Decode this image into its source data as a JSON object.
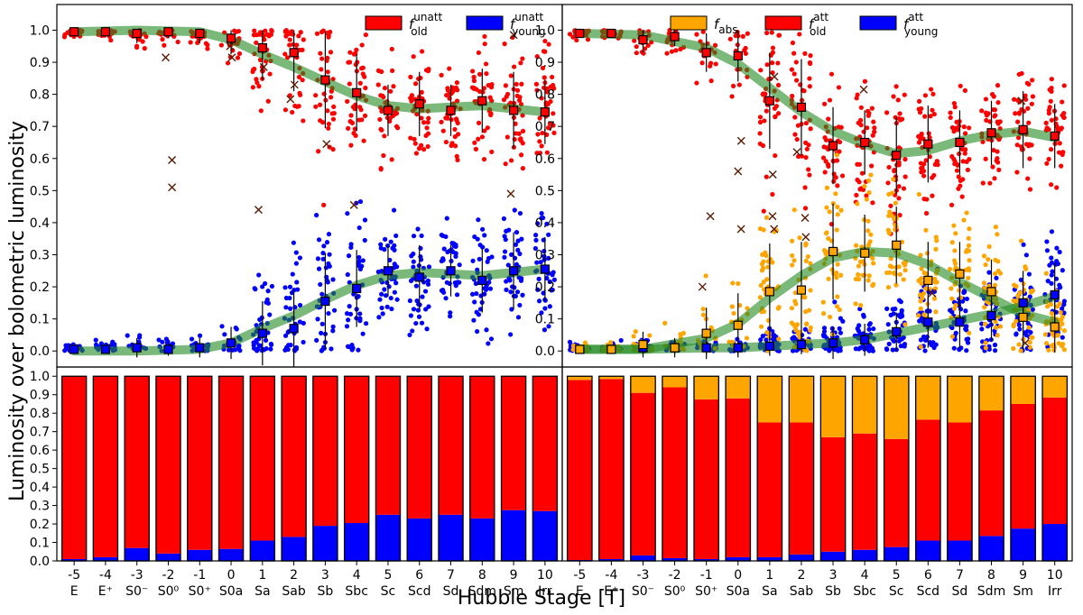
{
  "figure": {
    "ylabel": "Luminosity over bolometric luminosity",
    "xlabel": "Hubble Stage [T]"
  },
  "colors": {
    "old": "#ff0000",
    "young": "#0000ff",
    "abs": "#ffa500",
    "trend": "#228b22",
    "axes": "#000000"
  },
  "chart_data": [
    {
      "id": "top-left",
      "type": "scatter",
      "title": "",
      "ylim": [
        -0.05,
        1.08
      ],
      "yticks": [
        "0.0",
        "0.1",
        "0.2",
        "0.3",
        "0.4",
        "0.5",
        "0.6",
        "0.7",
        "0.8",
        "0.9",
        "1.0"
      ],
      "legend": [
        {
          "sym": "f",
          "sup": "unatt",
          "sub": "old",
          "color": "#ff0000"
        },
        {
          "sym": "f",
          "sup": "unatt",
          "sub": "young",
          "color": "#0000ff"
        }
      ],
      "x": [
        -5,
        -4,
        -3,
        -2,
        -1,
        0,
        1,
        2,
        3,
        4,
        5,
        6,
        7,
        8,
        9,
        10
      ],
      "series": [
        {
          "name": "f_old_unatt",
          "color": "#ff0000",
          "mean": [
            0.995,
            0.995,
            0.99,
            0.995,
            0.99,
            0.975,
            0.945,
            0.93,
            0.845,
            0.805,
            0.75,
            0.77,
            0.75,
            0.78,
            0.75,
            0.745
          ],
          "err": [
            0.005,
            0.01,
            0.03,
            0.02,
            0.03,
            0.05,
            0.1,
            0.12,
            0.15,
            0.12,
            0.08,
            0.1,
            0.08,
            0.1,
            0.12,
            0.1
          ]
        },
        {
          "name": "f_young_unatt",
          "color": "#0000ff",
          "mean": [
            0.005,
            0.005,
            0.01,
            0.005,
            0.01,
            0.025,
            0.055,
            0.07,
            0.155,
            0.195,
            0.25,
            0.23,
            0.25,
            0.22,
            0.25,
            0.255
          ],
          "err": [
            0.005,
            0.01,
            0.03,
            0.02,
            0.03,
            0.05,
            0.1,
            0.12,
            0.15,
            0.12,
            0.08,
            0.1,
            0.08,
            0.1,
            0.12,
            0.1
          ]
        }
      ],
      "trend": [
        [
          [
            -5,
            0.995
          ],
          [
            -3,
            1.0
          ],
          [
            -1,
            0.995
          ],
          [
            0,
            0.97
          ],
          [
            1,
            0.925
          ],
          [
            2,
            0.885
          ],
          [
            3,
            0.84
          ],
          [
            4,
            0.795
          ],
          [
            5,
            0.765
          ],
          [
            6,
            0.755
          ],
          [
            7,
            0.76
          ],
          [
            8,
            0.765
          ],
          [
            9,
            0.755
          ],
          [
            10,
            0.745
          ]
        ],
        [
          [
            -5,
            0.0
          ],
          [
            -3,
            0.0
          ],
          [
            -1,
            0.005
          ],
          [
            0,
            0.025
          ],
          [
            1,
            0.07
          ],
          [
            2,
            0.11
          ],
          [
            3,
            0.16
          ],
          [
            4,
            0.205
          ],
          [
            5,
            0.235
          ],
          [
            6,
            0.245
          ],
          [
            7,
            0.24
          ],
          [
            8,
            0.235
          ],
          [
            9,
            0.245
          ],
          [
            10,
            0.255
          ]
        ]
      ],
      "crosses": [
        [
          -2,
          0.915
        ],
        [
          -2,
          0.595
        ],
        [
          -2,
          0.51
        ],
        [
          0,
          0.915
        ],
        [
          0,
          0.95
        ],
        [
          1,
          0.885
        ],
        [
          1,
          0.44
        ],
        [
          2,
          0.83
        ],
        [
          2,
          0.785
        ],
        [
          3,
          0.645
        ],
        [
          4,
          0.455
        ],
        [
          9,
          0.985
        ],
        [
          9,
          0.49
        ]
      ]
    },
    {
      "id": "top-right",
      "type": "scatter",
      "title": "",
      "ylim": [
        -0.05,
        1.08
      ],
      "yticks": [
        "0.0",
        "0.1",
        "0.2",
        "0.3",
        "0.4",
        "0.5",
        "0.6",
        "0.7",
        "0.8",
        "0.9",
        "1.0"
      ],
      "legend": [
        {
          "sym": "f",
          "sup": "",
          "sub": "abs",
          "color": "#ffa500"
        },
        {
          "sym": "f",
          "sup": "att",
          "sub": "old",
          "color": "#ff0000"
        },
        {
          "sym": "f",
          "sup": "att",
          "sub": "young",
          "color": "#0000ff"
        }
      ],
      "x": [
        -5,
        -4,
        -3,
        -2,
        -1,
        0,
        1,
        2,
        3,
        4,
        5,
        6,
        7,
        8,
        9,
        10
      ],
      "series": [
        {
          "name": "f_old_att",
          "color": "#ff0000",
          "mean": [
            0.99,
            0.99,
            0.97,
            0.98,
            0.93,
            0.92,
            0.78,
            0.76,
            0.64,
            0.65,
            0.61,
            0.645,
            0.65,
            0.68,
            0.69,
            0.67
          ],
          "err": [
            0.01,
            0.01,
            0.04,
            0.03,
            0.06,
            0.08,
            0.15,
            0.15,
            0.12,
            0.1,
            0.12,
            0.12,
            0.1,
            0.1,
            0.12,
            0.1
          ]
        },
        {
          "name": "f_young_att",
          "color": "#0000ff",
          "mean": [
            0.005,
            0.005,
            0.01,
            0.01,
            0.01,
            0.01,
            0.015,
            0.02,
            0.025,
            0.035,
            0.06,
            0.09,
            0.09,
            0.11,
            0.15,
            0.175
          ],
          "err": [
            0.005,
            0.005,
            0.02,
            0.02,
            0.02,
            0.02,
            0.03,
            0.03,
            0.05,
            0.05,
            0.06,
            0.08,
            0.08,
            0.08,
            0.1,
            0.1
          ]
        },
        {
          "name": "f_abs",
          "color": "#ffa500",
          "mean": [
            0.005,
            0.005,
            0.02,
            0.01,
            0.055,
            0.08,
            0.185,
            0.19,
            0.31,
            0.305,
            0.33,
            0.22,
            0.24,
            0.185,
            0.105,
            0.075
          ],
          "err": [
            0.005,
            0.005,
            0.04,
            0.03,
            0.08,
            0.1,
            0.15,
            0.15,
            0.15,
            0.12,
            0.12,
            0.12,
            0.1,
            0.1,
            0.1,
            0.08
          ]
        }
      ],
      "trend": [
        [
          [
            -5,
            0.99
          ],
          [
            -3,
            0.985
          ],
          [
            -1,
            0.945
          ],
          [
            0,
            0.895
          ],
          [
            1,
            0.82
          ],
          [
            2,
            0.745
          ],
          [
            3,
            0.685
          ],
          [
            4,
            0.645
          ],
          [
            5,
            0.615
          ],
          [
            6,
            0.625
          ],
          [
            7,
            0.655
          ],
          [
            8,
            0.675
          ],
          [
            9,
            0.685
          ],
          [
            10,
            0.665
          ]
        ],
        [
          [
            -5,
            0.005
          ],
          [
            -3,
            0.005
          ],
          [
            -1,
            0.01
          ],
          [
            0,
            0.01
          ],
          [
            1,
            0.015
          ],
          [
            2,
            0.02
          ],
          [
            3,
            0.025
          ],
          [
            4,
            0.035
          ],
          [
            5,
            0.055
          ],
          [
            6,
            0.075
          ],
          [
            7,
            0.095
          ],
          [
            8,
            0.115
          ],
          [
            9,
            0.14
          ],
          [
            10,
            0.17
          ]
        ],
        [
          [
            -5,
            0.005
          ],
          [
            -3,
            0.005
          ],
          [
            -1,
            0.04
          ],
          [
            0,
            0.085
          ],
          [
            1,
            0.165
          ],
          [
            2,
            0.235
          ],
          [
            3,
            0.29
          ],
          [
            4,
            0.31
          ],
          [
            5,
            0.305
          ],
          [
            6,
            0.27
          ],
          [
            7,
            0.215
          ],
          [
            8,
            0.165
          ],
          [
            9,
            0.115
          ],
          [
            10,
            0.09
          ]
        ]
      ],
      "crosses": [
        [
          -1,
          0.42
        ],
        [
          -1,
          0.2
        ],
        [
          0,
          0.655
        ],
        [
          0,
          0.56
        ],
        [
          0,
          0.38
        ],
        [
          1,
          0.42
        ],
        [
          1,
          0.38
        ],
        [
          1,
          0.855
        ],
        [
          1,
          0.55
        ],
        [
          2,
          0.415
        ],
        [
          2,
          0.355
        ],
        [
          2,
          0.62
        ],
        [
          4,
          0.815
        ],
        [
          6,
          0.18
        ],
        [
          9,
          0.78
        ],
        [
          9,
          0.025
        ]
      ]
    },
    {
      "id": "bottom-left",
      "type": "bar",
      "stacked": true,
      "ylim": [
        0,
        1.05
      ],
      "yticks": [
        "0.0",
        "0.1",
        "0.2",
        "0.3",
        "0.4",
        "0.5",
        "0.6",
        "0.7",
        "0.8",
        "0.9",
        "1.0"
      ],
      "categories": [
        "-5",
        "-4",
        "-3",
        "-2",
        "-1",
        "0",
        "1",
        "2",
        "3",
        "4",
        "5",
        "6",
        "7",
        "8",
        "9",
        "10"
      ],
      "category_names": [
        "E",
        "E⁺",
        "S0⁻",
        "S0⁰",
        "S0⁺",
        "S0a",
        "Sa",
        "Sab",
        "Sb",
        "Sbc",
        "Sc",
        "Scd",
        "Sd",
        "Sdm",
        "Sm",
        "Irr"
      ],
      "series": [
        {
          "name": "young",
          "color": "#0000ff",
          "values": [
            0.01,
            0.02,
            0.07,
            0.04,
            0.06,
            0.065,
            0.11,
            0.13,
            0.19,
            0.205,
            0.25,
            0.23,
            0.25,
            0.23,
            0.275,
            0.27
          ]
        },
        {
          "name": "old",
          "color": "#ff0000",
          "values": [
            0.99,
            0.98,
            0.93,
            0.96,
            0.94,
            0.935,
            0.89,
            0.87,
            0.81,
            0.795,
            0.75,
            0.77,
            0.75,
            0.77,
            0.725,
            0.73
          ]
        }
      ]
    },
    {
      "id": "bottom-right",
      "type": "bar",
      "stacked": true,
      "ylim": [
        0,
        1.05
      ],
      "categories": [
        "-5",
        "-4",
        "-3",
        "-2",
        "-1",
        "0",
        "1",
        "2",
        "3",
        "4",
        "5",
        "6",
        "7",
        "8",
        "9",
        "10"
      ],
      "category_names": [
        "E",
        "E⁺",
        "S0⁻",
        "S0⁰",
        "S0⁺",
        "S0a",
        "Sa",
        "Sab",
        "Sb",
        "Sbc",
        "Sc",
        "Scd",
        "Sd",
        "Sdm",
        "Sm",
        "Irr"
      ],
      "series": [
        {
          "name": "young",
          "color": "#0000ff",
          "values": [
            0.005,
            0.01,
            0.03,
            0.015,
            0.01,
            0.02,
            0.02,
            0.035,
            0.05,
            0.06,
            0.075,
            0.11,
            0.11,
            0.135,
            0.175,
            0.2
          ]
        },
        {
          "name": "old",
          "color": "#ff0000",
          "values": [
            0.975,
            0.975,
            0.88,
            0.925,
            0.865,
            0.86,
            0.73,
            0.715,
            0.62,
            0.63,
            0.585,
            0.655,
            0.64,
            0.68,
            0.675,
            0.685
          ]
        },
        {
          "name": "abs",
          "color": "#ffa500",
          "values": [
            0.02,
            0.015,
            0.09,
            0.06,
            0.125,
            0.12,
            0.25,
            0.25,
            0.33,
            0.31,
            0.34,
            0.235,
            0.25,
            0.185,
            0.15,
            0.115
          ]
        }
      ]
    }
  ]
}
